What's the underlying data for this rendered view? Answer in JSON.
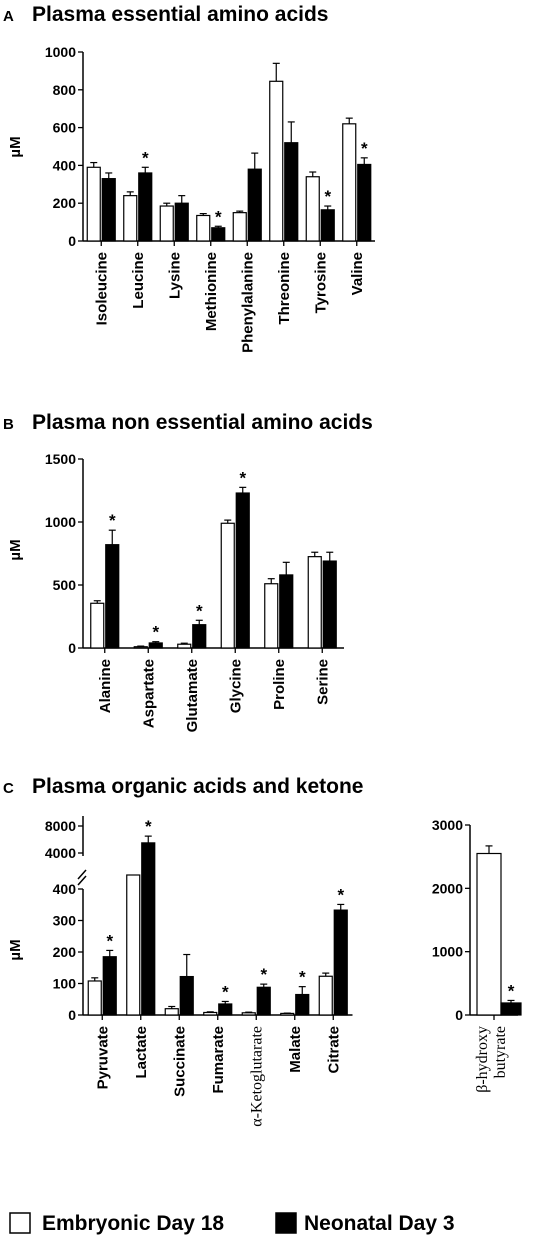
{
  "chart_data": [
    {
      "panel": "A",
      "type": "bar",
      "title": "Plasma essential amino acids",
      "ylabel": "µM",
      "ylim": [
        0,
        1000
      ],
      "yticks": [
        "0",
        "200",
        "400",
        "600",
        "800",
        "1000"
      ],
      "categories": [
        "Isoleucine",
        "Leucine",
        "Lysine",
        "Methionine",
        "Phenylalanine",
        "Threonine",
        "Tyrosine",
        "Valine"
      ],
      "series": [
        {
          "name": "Embryonic Day 18",
          "values": [
            390,
            240,
            185,
            135,
            150,
            845,
            340,
            620
          ],
          "errors": [
            25,
            20,
            15,
            10,
            8,
            95,
            25,
            30
          ]
        },
        {
          "name": "Neonatal Day 3",
          "values": [
            330,
            360,
            200,
            70,
            380,
            520,
            165,
            405
          ],
          "errors": [
            30,
            30,
            40,
            8,
            85,
            110,
            20,
            35
          ]
        }
      ],
      "significant": [
        false,
        true,
        false,
        true,
        false,
        false,
        true,
        true
      ]
    },
    {
      "panel": "B",
      "type": "bar",
      "title": "Plasma non essential amino acids",
      "ylabel": "µM",
      "ylim": [
        0,
        1500
      ],
      "yticks": [
        "0",
        "500",
        "1000",
        "1500"
      ],
      "categories": [
        "Alanine",
        "Aspartate",
        "Glutamate",
        "Glycine",
        "Proline",
        "Serine"
      ],
      "series": [
        {
          "name": "Embryonic Day 18",
          "values": [
            355,
            10,
            30,
            990,
            510,
            725
          ],
          "errors": [
            20,
            5,
            8,
            25,
            40,
            35
          ]
        },
        {
          "name": "Neonatal Day 3",
          "values": [
            820,
            40,
            185,
            1230,
            580,
            690
          ],
          "errors": [
            115,
            10,
            35,
            45,
            100,
            70
          ]
        }
      ],
      "significant": [
        true,
        true,
        true,
        true,
        false,
        false
      ]
    },
    {
      "panel": "C",
      "type": "bar",
      "title": "Plasma organic acids and ketone",
      "ylabel": "µM",
      "axis_break": true,
      "ylim_lower": [
        0,
        400
      ],
      "yticks_lower": [
        "0",
        "100",
        "200",
        "300",
        "400"
      ],
      "yticks_upper": [
        "4000",
        "8000"
      ],
      "categories": [
        "Pyruvate",
        "Lactate",
        "Succinate",
        "Fumarate",
        "α-Ketoglutarate",
        "Malate",
        "Citrate"
      ],
      "series": [
        {
          "name": "Embryonic Day 18",
          "values": [
            108,
            1500,
            20,
            8,
            7,
            5,
            123
          ],
          "errors": [
            10,
            0,
            7,
            2,
            2,
            1,
            10
          ]
        },
        {
          "name": "Neonatal Day 3",
          "values": [
            185,
            5500,
            122,
            35,
            88,
            65,
            333
          ],
          "errors": [
            20,
            1000,
            70,
            8,
            10,
            25,
            18
          ]
        }
      ],
      "significant": [
        true,
        true,
        false,
        true,
        true,
        true,
        true
      ]
    },
    {
      "panel": "C-right",
      "type": "bar",
      "title": "",
      "ylim": [
        0,
        3000
      ],
      "yticks": [
        "0",
        "1000",
        "2000",
        "3000"
      ],
      "categories": [
        "β-hydroxy butyrate"
      ],
      "category_label_lines": [
        "β-hydroxy",
        "butyrate"
      ],
      "series": [
        {
          "name": "Embryonic Day 18",
          "values": [
            2550
          ],
          "errors": [
            120
          ]
        },
        {
          "name": "Neonatal Day 3",
          "values": [
            190
          ],
          "errors": [
            40
          ]
        }
      ],
      "significant": [
        true
      ]
    }
  ],
  "significance_marker": "*",
  "legend": {
    "placement": "bottom",
    "items": [
      {
        "label": "Embryonic Day 18",
        "fill": "#ffffff"
      },
      {
        "label": "Neonatal Day 3",
        "fill": "#000000"
      }
    ]
  }
}
